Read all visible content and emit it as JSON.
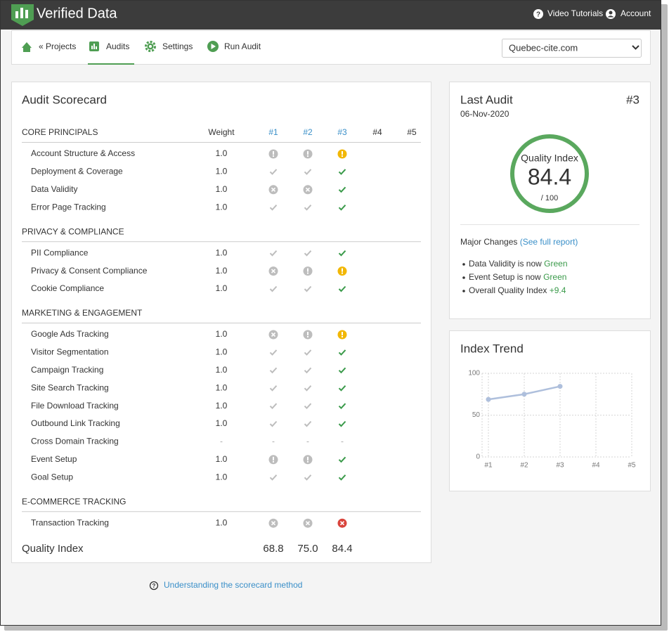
{
  "header": {
    "brand": "Verified Data",
    "links": [
      "Video Tutorials",
      "Account"
    ]
  },
  "nav": {
    "items": [
      "« Projects",
      "Audits",
      "Settings",
      "Run Audit"
    ],
    "active": "Audits",
    "site": "Quebec-cite.com"
  },
  "scorecard": {
    "title": "Audit Scorecard",
    "weight_label": "Weight",
    "audits": [
      "#1",
      "#2",
      "#3",
      "#4",
      "#5"
    ],
    "sections": [
      {
        "name": "CORE PRINCIPALS",
        "rows": [
          {
            "label": "Account Structure & Access",
            "weight": "1.0",
            "status": [
              "warn",
              "warn",
              "warn"
            ]
          },
          {
            "label": "Deployment & Coverage",
            "weight": "1.0",
            "status": [
              "ok",
              "ok",
              "ok"
            ]
          },
          {
            "label": "Data Validity",
            "weight": "1.0",
            "status": [
              "fail",
              "fail",
              "ok"
            ]
          },
          {
            "label": "Error Page Tracking",
            "weight": "1.0",
            "status": [
              "ok",
              "ok",
              "ok"
            ]
          }
        ]
      },
      {
        "name": "PRIVACY & COMPLIANCE",
        "rows": [
          {
            "label": "PII Compliance",
            "weight": "1.0",
            "status": [
              "ok",
              "ok",
              "ok"
            ]
          },
          {
            "label": "Privacy & Consent Compliance",
            "weight": "1.0",
            "status": [
              "fail",
              "warn",
              "warn"
            ]
          },
          {
            "label": "Cookie Compliance",
            "weight": "1.0",
            "status": [
              "ok",
              "ok",
              "ok"
            ]
          }
        ]
      },
      {
        "name": "MARKETING & ENGAGEMENT",
        "rows": [
          {
            "label": "Google Ads Tracking",
            "weight": "1.0",
            "status": [
              "fail",
              "warn",
              "warn"
            ]
          },
          {
            "label": "Visitor Segmentation",
            "weight": "1.0",
            "status": [
              "ok",
              "ok",
              "ok"
            ]
          },
          {
            "label": "Campaign Tracking",
            "weight": "1.0",
            "status": [
              "ok",
              "ok",
              "ok"
            ]
          },
          {
            "label": "Site Search Tracking",
            "weight": "1.0",
            "status": [
              "ok",
              "ok",
              "ok"
            ]
          },
          {
            "label": "File Download Tracking",
            "weight": "1.0",
            "status": [
              "ok",
              "ok",
              "ok"
            ]
          },
          {
            "label": "Outbound Link Tracking",
            "weight": "1.0",
            "status": [
              "ok",
              "ok",
              "ok"
            ]
          },
          {
            "label": "Cross Domain Tracking",
            "weight": "-",
            "status": [
              "-",
              "-",
              "-"
            ]
          },
          {
            "label": "Event Setup",
            "weight": "1.0",
            "status": [
              "warn",
              "warn",
              "ok"
            ]
          },
          {
            "label": "Goal Setup",
            "weight": "1.0",
            "status": [
              "ok",
              "ok",
              "ok"
            ]
          }
        ]
      },
      {
        "name": "E-COMMERCE TRACKING",
        "rows": [
          {
            "label": "Transaction Tracking",
            "weight": "1.0",
            "status": [
              "fail",
              "fail",
              "fail"
            ]
          }
        ]
      }
    ],
    "total_label": "Quality Index",
    "totals": [
      "68.8",
      "75.0",
      "84.4"
    ]
  },
  "last_audit": {
    "title": "Last Audit",
    "number": "#3",
    "date": "06-Nov-2020",
    "gauge_label": "Quality Index",
    "gauge_value": "84.4",
    "gauge_scale": "/ 100",
    "changes_title": "Major Changes",
    "changes_link": "(See full report)",
    "changes": [
      {
        "text": "Data Validity is now ",
        "highlight": "Green"
      },
      {
        "text": "Event Setup is now ",
        "highlight": "Green"
      },
      {
        "text": "Overall Quality Index ",
        "highlight": "+9.4"
      }
    ]
  },
  "chart_data": {
    "type": "line",
    "title": "Index Trend",
    "categories": [
      "#1",
      "#2",
      "#3",
      "#4",
      "#5"
    ],
    "values": [
      68.8,
      75.0,
      84.4,
      null,
      null
    ],
    "color": "#aebfdc",
    "ylim": [
      0,
      100
    ],
    "yticks": [
      0,
      50,
      100
    ],
    "grid": true
  },
  "footer": {
    "help_link": "Understanding the scorecard method"
  }
}
